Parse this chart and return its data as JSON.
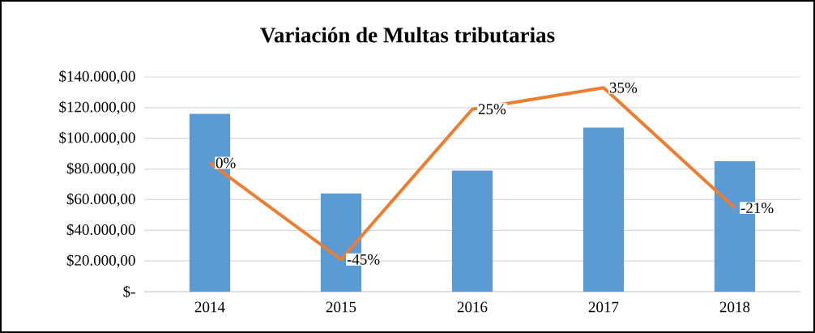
{
  "chart_data": {
    "type": "bar",
    "title": "Variación de Multas tributarias",
    "categories": [
      "2014",
      "2015",
      "2016",
      "2017",
      "2018"
    ],
    "series": [
      {
        "color": "#5b9bd5",
        "values": [
          116000,
          64000,
          79000,
          107000,
          85000
        ]
      },
      {
        "type": "line",
        "axis": "y2",
        "color": "#ed7d31",
        "values": [
          0,
          -45,
          25,
          35,
          -21
        ],
        "value_labels": [
          "0%",
          "-45%",
          "25%",
          "35%",
          "-21%"
        ]
      }
    ],
    "ylim": [
      0,
      140000
    ],
    "yticks": [
      {
        "value": 0,
        "label": "$-"
      },
      {
        "value": 20000,
        "label": "$20.000,00"
      },
      {
        "value": 40000,
        "label": "$40.000,00"
      },
      {
        "value": 60000,
        "label": "$60.000,00"
      },
      {
        "value": 80000,
        "label": "$80.000,00"
      },
      {
        "value": 100000,
        "label": "$100.000,00"
      },
      {
        "value": 120000,
        "label": "$120.000,00"
      },
      {
        "value": 140000,
        "label": "$140.000,00"
      }
    ],
    "y2lim": [
      -60,
      40
    ],
    "grid": "y"
  }
}
